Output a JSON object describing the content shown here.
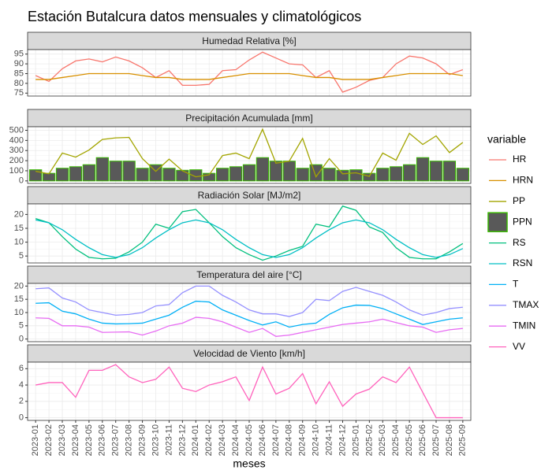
{
  "title": "Estación Butalcura datos mensuales y climatológicos",
  "x_label": "meses",
  "legend_title": "variable",
  "categories": [
    "2023-01",
    "2023-02",
    "2023-03",
    "2023-04",
    "2023-05",
    "2023-06",
    "2023-07",
    "2023-08",
    "2023-09",
    "2023-10",
    "2023-11",
    "2023-12",
    "2024-01",
    "2024-02",
    "2024-03",
    "2024-04",
    "2024-05",
    "2024-06",
    "2024-07",
    "2024-08",
    "2024-09",
    "2024-10",
    "2024-11",
    "2024-12",
    "2025-01",
    "2025-02",
    "2025-03",
    "2025-04",
    "2025-05",
    "2025-06",
    "2025-07",
    "2025-08",
    "2025-09"
  ],
  "chart_data": [
    {
      "type": "line",
      "title": "Humedad Relativa [%]",
      "ylim": [
        73.5,
        97.3
      ],
      "yticks": [
        75,
        80,
        85,
        90,
        95
      ],
      "grid": true,
      "series": [
        {
          "name": "HR",
          "color": "#F8766D",
          "values": [
            84,
            81,
            87.5,
            91.5,
            92.5,
            91,
            93.5,
            91.5,
            88,
            83,
            86.5,
            79,
            79,
            79.5,
            86.5,
            87,
            92,
            96,
            93,
            90,
            89.5,
            83,
            86.5,
            75.5,
            78,
            81.5,
            83,
            90,
            94,
            93,
            90,
            84.5,
            87
          ]
        },
        {
          "name": "HRN",
          "color": "#D89000",
          "values": [
            82,
            82,
            83,
            84,
            85,
            85,
            85,
            85,
            84,
            83,
            83,
            82,
            82,
            82,
            83,
            84,
            85,
            85,
            85,
            85,
            84,
            83,
            83,
            82,
            82,
            82,
            83,
            84,
            85,
            85,
            85,
            85,
            84
          ]
        }
      ]
    },
    {
      "type": "line",
      "title": "Precipitación Acumulada [mm]",
      "ylim": [
        -25,
        535
      ],
      "yticks": [
        0,
        100,
        200,
        300,
        400,
        500
      ],
      "grid": true,
      "series": [
        {
          "name": "PP",
          "color": "#A3A500",
          "values": [
            95,
            70,
            275,
            235,
            305,
            410,
            425,
            430,
            220,
            95,
            215,
            100,
            40,
            60,
            250,
            275,
            220,
            510,
            175,
            195,
            420,
            40,
            220,
            70,
            80,
            45,
            275,
            205,
            470,
            360,
            445,
            280,
            380
          ]
        },
        {
          "name": "PPN",
          "type": "bar",
          "color": "#39B600",
          "fill": "#595959",
          "values": [
            110,
            75,
            125,
            140,
            160,
            230,
            195,
            195,
            125,
            160,
            125,
            105,
            110,
            75,
            125,
            140,
            160,
            230,
            195,
            195,
            125,
            160,
            125,
            105,
            110,
            75,
            125,
            140,
            160,
            230,
            195,
            195,
            125
          ]
        }
      ]
    },
    {
      "type": "line",
      "title": "Radiación Solar [MJ/m2]",
      "ylim": [
        2.5,
        23.8
      ],
      "yticks": [
        5,
        10,
        15,
        20
      ],
      "grid": true,
      "series": [
        {
          "name": "RS",
          "color": "#00BF7D",
          "values": [
            18.5,
            17,
            12,
            7.5,
            4.5,
            4,
            4.2,
            6.5,
            10,
            16.5,
            15,
            21,
            21.8,
            17,
            12,
            8,
            5.5,
            3.5,
            5,
            7,
            8.5,
            16.5,
            15.5,
            23,
            21.5,
            15.5,
            13.5,
            8,
            4.5,
            4,
            4,
            6.5,
            9.5
          ]
        },
        {
          "name": "RSN",
          "color": "#00BFC4",
          "values": [
            18,
            17,
            14.5,
            11,
            8,
            5.5,
            4.5,
            5.5,
            8,
            11.5,
            14.5,
            17,
            18,
            17,
            14.5,
            11,
            8,
            5.5,
            4.5,
            5.5,
            8,
            11.5,
            14.5,
            17,
            18,
            17,
            14.5,
            11,
            8,
            5.5,
            4.5,
            5.5,
            7.7
          ]
        }
      ]
    },
    {
      "type": "line",
      "title": "Temperatura del aire [°C]",
      "ylim": [
        -1,
        21
      ],
      "yticks": [
        0,
        5,
        10,
        15,
        20
      ],
      "grid": true,
      "series": [
        {
          "name": "T",
          "color": "#00B0F6",
          "values": [
            13.5,
            13.7,
            10.5,
            9.5,
            7.5,
            6,
            5.7,
            5.8,
            6,
            7.5,
            9,
            12,
            14.3,
            14,
            11,
            9,
            7,
            5.3,
            6.5,
            4.5,
            5.5,
            6,
            9.3,
            11.8,
            12.8,
            12.7,
            11.5,
            9.5,
            7.5,
            5.5,
            6.5,
            7.5,
            8
          ]
        },
        {
          "name": "TMAX",
          "color": "#9590FF",
          "values": [
            19,
            19.3,
            15.5,
            14,
            11,
            10,
            9,
            9.3,
            10,
            12.5,
            13,
            17.5,
            20,
            20,
            16.5,
            14,
            11,
            9.5,
            9.5,
            8.5,
            10,
            15,
            14.5,
            18,
            19.5,
            18,
            16.5,
            14,
            11,
            9,
            10,
            11.5,
            12
          ]
        },
        {
          "name": "TMIN",
          "color": "#E76BF3",
          "values": [
            8,
            7.8,
            5,
            5,
            4.5,
            2.5,
            2.6,
            2.7,
            1.5,
            3,
            5,
            6,
            8.2,
            7.8,
            6.5,
            4.5,
            2.5,
            4,
            1,
            1.5,
            2.5,
            3.5,
            4.5,
            5.5,
            6,
            6.5,
            7.5,
            6.2,
            5,
            4.5,
            2.5,
            3.5,
            4
          ]
        }
      ]
    },
    {
      "type": "line",
      "title": "Velocidad de Viento [km/h]",
      "ylim": [
        -0.33,
        6.8
      ],
      "yticks": [
        0,
        2,
        4,
        6
      ],
      "grid": true,
      "series": [
        {
          "name": "VV",
          "color": "#FF62BC",
          "values": [
            4,
            4.3,
            4.3,
            2.5,
            5.8,
            5.8,
            6.5,
            5,
            4.3,
            4.7,
            6.2,
            3.6,
            3.2,
            4,
            4.4,
            5,
            2.1,
            6.2,
            2.9,
            3.6,
            5.4,
            1.7,
            4.4,
            1.4,
            2.9,
            3.5,
            5,
            4.3,
            6.2,
            3.1,
            0,
            0,
            0
          ]
        }
      ]
    }
  ]
}
